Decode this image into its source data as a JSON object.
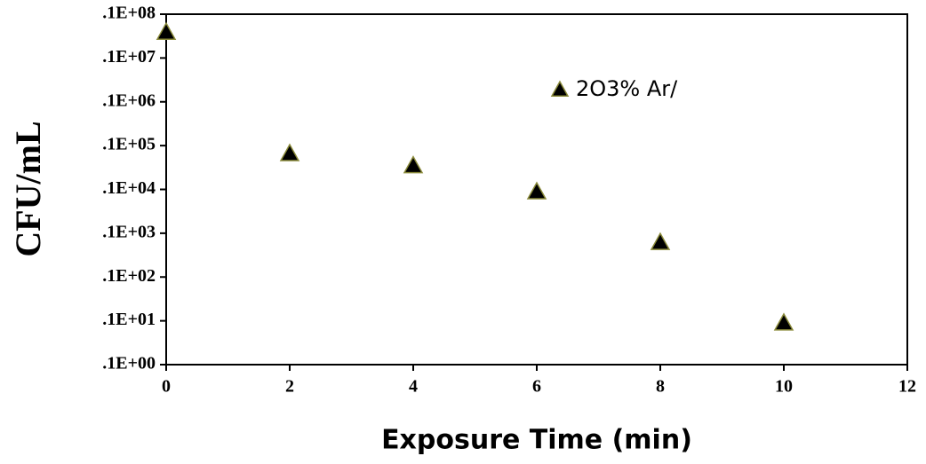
{
  "chart_data": {
    "type": "scatter",
    "x_label": "Exposure Time (min)",
    "y_label": "CFU/mL",
    "series": [
      {
        "name": "2O3% Ar/",
        "color": "#000000",
        "edgecolor": "#8a8a3a",
        "x": [
          0,
          2,
          4,
          6,
          8,
          10
        ],
        "values": [
          3900000,
          6600,
          3500,
          890,
          62,
          0.9
        ]
      }
    ],
    "xlim": [
      0,
      12
    ],
    "xticks": [
      0,
      2,
      4,
      6,
      8,
      10,
      12
    ],
    "ylim": [
      0.1,
      10000000
    ],
    "yscale": "log",
    "yticks": [
      {
        "value": 0.1,
        "label": ".1E+00"
      },
      {
        "value": 1,
        "label": ".1E+01"
      },
      {
        "value": 10,
        "label": ".1E+02"
      },
      {
        "value": 100,
        "label": ".1E+03"
      },
      {
        "value": 1000,
        "label": ".1E+04"
      },
      {
        "value": 10000,
        "label": ".1E+05"
      },
      {
        "value": 100000,
        "label": ".1E+06"
      },
      {
        "value": 1000000,
        "label": ".1E+07"
      },
      {
        "value": 10000000,
        "label": ".1E+08"
      }
    ]
  }
}
